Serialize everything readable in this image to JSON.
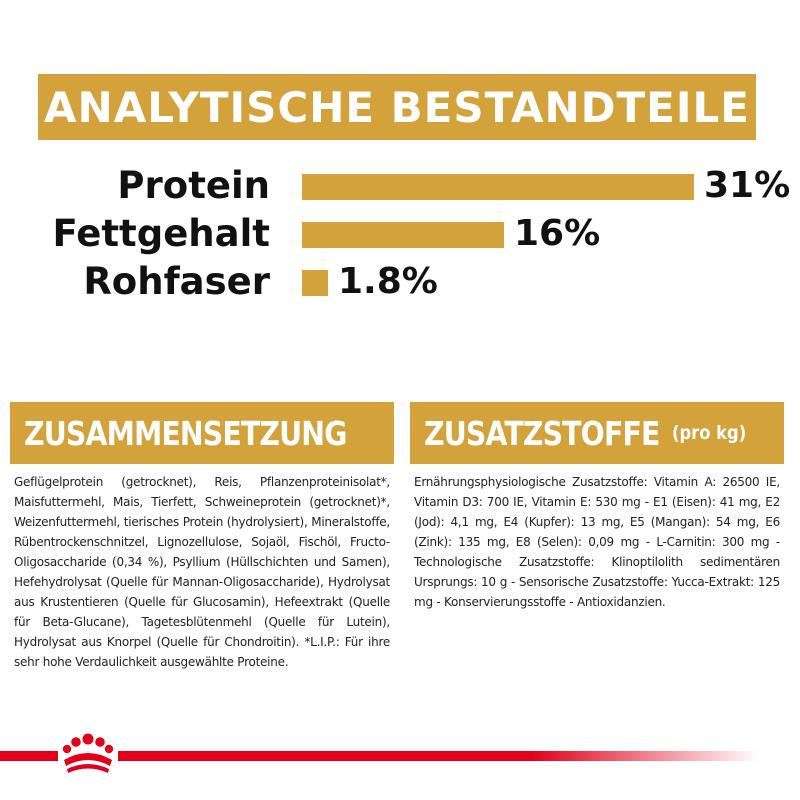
{
  "header": {
    "title": "ANALYTISCHE BESTANDTEILE"
  },
  "analysis": {
    "rows": [
      {
        "label": "Protein",
        "value_text": "31%",
        "value": 31
      },
      {
        "label": "Fettgehalt",
        "value_text": "16%",
        "value": 16
      },
      {
        "label": "Rohfaser",
        "value_text": "1.8%",
        "value": 1.8
      }
    ]
  },
  "composition": {
    "title": "ZUSAMMENSETZUNG",
    "text": "Geflügelprotein (getrocknet), Reis, Pflanzenproteinisolat*, Maisfuttermehl, Mais, Tierfett, Schweineprotein (getrocknet)*, Weizenfuttermehl, tierisches Protein (hydrolysiert), Mineralstoffe, Rübentrockenschnitzel, Lignozellulose, Sojaöl, Fischöl, Fructo-Oligosaccharide (0,34 %), Psyllium (Hüllschichten und Samen), Hefehydrolysat (Quelle für Mannan-Oligosaccharide), Hydrolysat aus Krustentieren (Quelle für Glucosamin), Hefeextrakt (Quelle für Beta-Glucane), Tagetesblütenmehl (Quelle für Lutein), Hydrolysat aus Knorpel (Quelle für Chondroitin). *L.I.P.: Für ihre sehr hohe Verdaulichkeit ausgewählte Proteine."
  },
  "additives": {
    "title": "ZUSATZSTOFFE",
    "title_suffix": "(pro kg)",
    "text": "Ernährungsphysiologische Zusatzstoffe: Vitamin A: 26500 IE, Vitamin D3: 700 IE, Vitamin E: 530 mg - E1 (Eisen): 41 mg, E2 (Jod): 4,1 mg, E4 (Kupfer): 13 mg, E5 (Mangan): 54 mg, E6 (Zink): 135 mg, E8 (Selen): 0,09 mg - L-Carnitin: 300 mg - Technologische Zusatzstoffe: Klinoptilolith sedimentären Ursprungs: 10 g - Sensorische Zusatzstoffe: Yucca-Extrakt: 125 mg - Konservierungsstoffe - Antioxidanzien."
  },
  "colors": {
    "accent": "#d4a23a",
    "brand_red": "#e2001a",
    "text": "#111111"
  },
  "icons": {
    "brand": "royal-canin-crown-icon"
  }
}
